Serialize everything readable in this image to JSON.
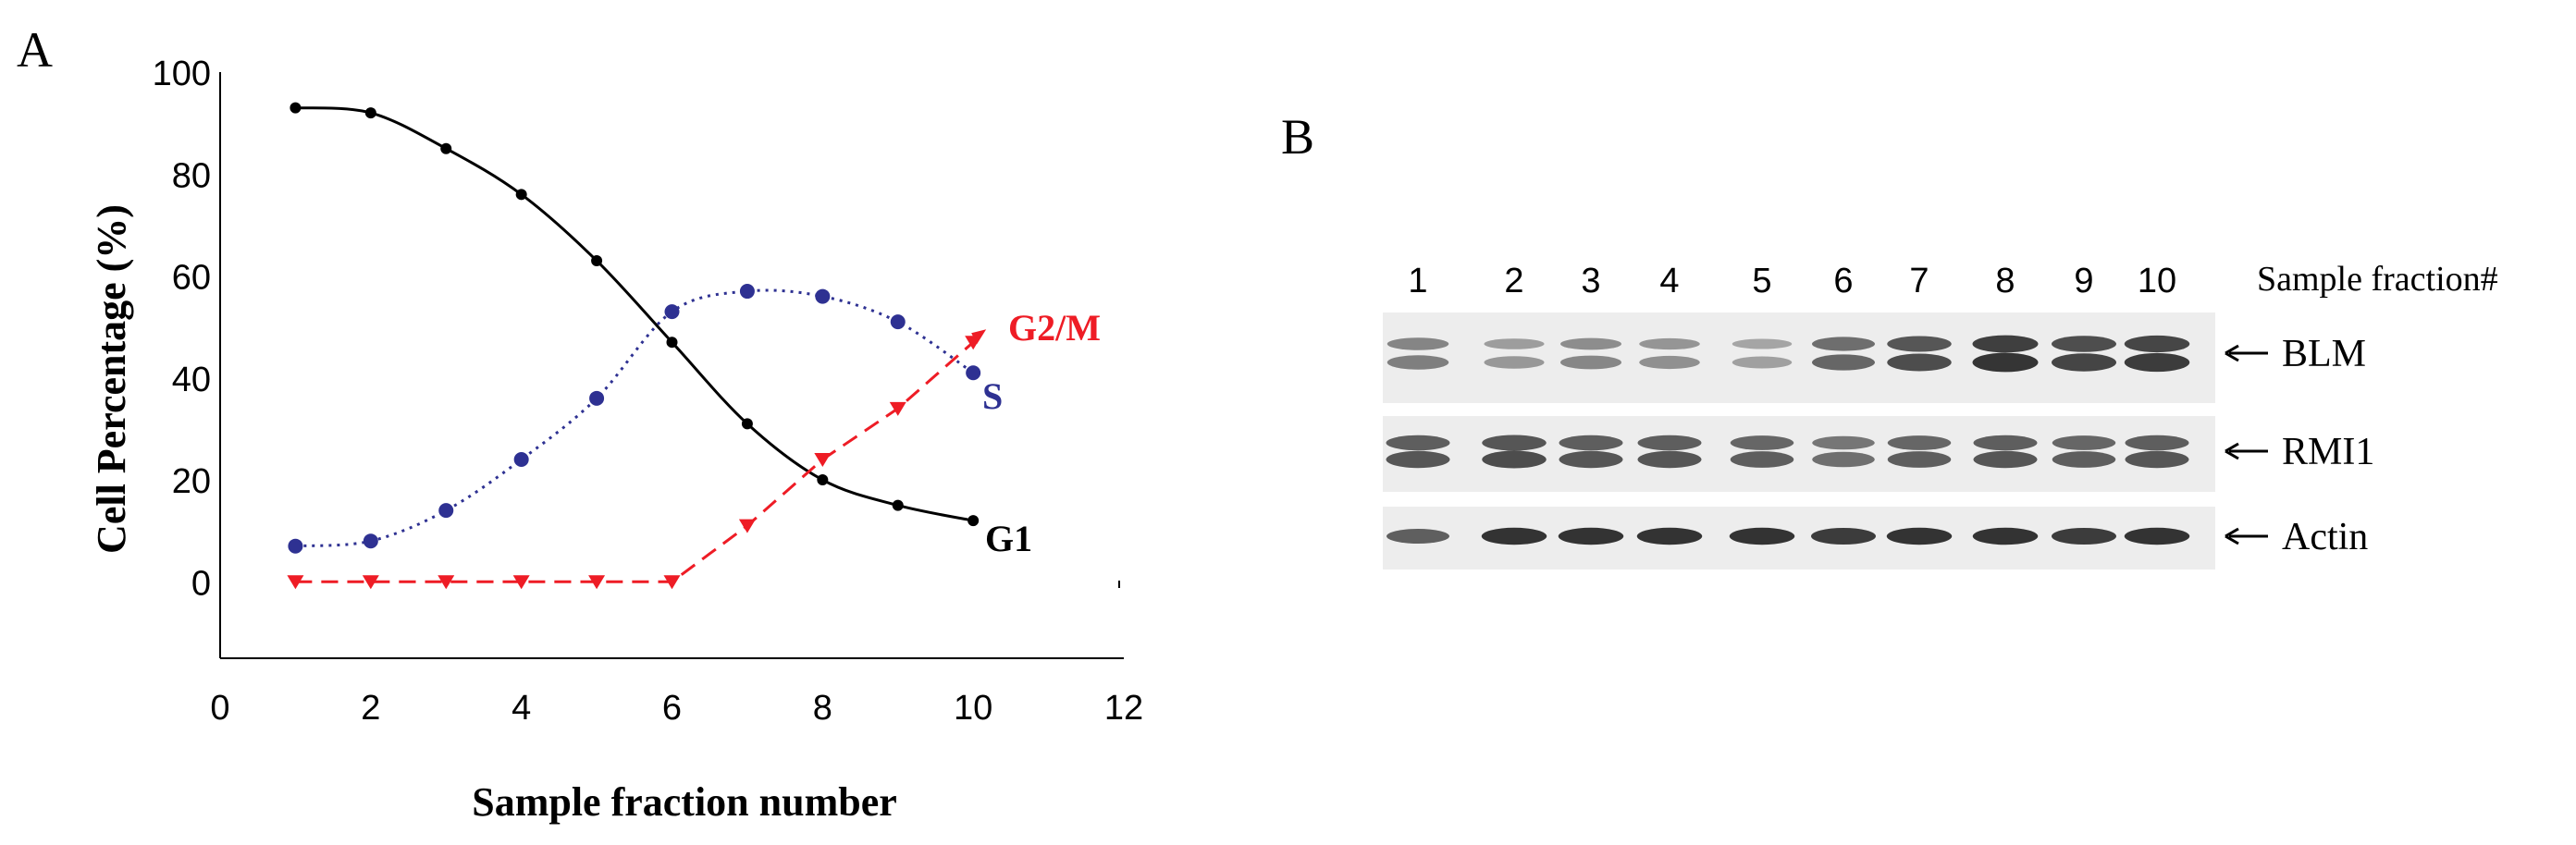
{
  "panel_a": {
    "label": "A",
    "chart_data": {
      "type": "line",
      "title": "",
      "xlabel": "Sample fraction number",
      "ylabel": "Cell Percentage (%)",
      "xlim": [
        0,
        12
      ],
      "ylim": [
        -15,
        100
      ],
      "x_ticks": [
        "0",
        "2",
        "4",
        "6",
        "8",
        "10",
        "12"
      ],
      "y_ticks": [
        "0",
        "20",
        "40",
        "60",
        "80",
        "100"
      ],
      "grid": false,
      "x": [
        1,
        2,
        3,
        4,
        5,
        6,
        7,
        8,
        9,
        10
      ],
      "series": [
        {
          "name": "G1",
          "color": "#000000",
          "marker": "circle",
          "line": "solid",
          "values": [
            93,
            92,
            85,
            76,
            63,
            47,
            31,
            20,
            15,
            12
          ]
        },
        {
          "name": "S",
          "color": "#2e3192",
          "marker": "circle",
          "line": "dotted",
          "values": [
            7,
            8,
            14,
            24,
            36,
            53,
            57,
            56,
            51,
            41
          ]
        },
        {
          "name": "G2/M",
          "color": "#ee1c25",
          "marker": "triangle-down",
          "line": "dashed",
          "values": [
            0,
            0,
            0,
            0,
            0,
            0,
            11,
            24,
            34,
            47
          ]
        }
      ]
    }
  },
  "panel_b": {
    "label": "B",
    "lane_header": "Sample fraction#",
    "lanes": [
      "1",
      "2",
      "3",
      "4",
      "5",
      "6",
      "7",
      "8",
      "9",
      "10"
    ],
    "bands": [
      {
        "name": "BLM",
        "intensity": [
          0.45,
          0.3,
          0.4,
          0.35,
          0.25,
          0.6,
          0.75,
          0.9,
          0.8,
          0.85
        ]
      },
      {
        "name": "RMI1",
        "intensity": [
          0.7,
          0.75,
          0.7,
          0.7,
          0.65,
          0.55,
          0.65,
          0.7,
          0.65,
          0.7
        ]
      },
      {
        "name": "Actin",
        "intensity": [
          0.6,
          0.85,
          0.85,
          0.85,
          0.85,
          0.8,
          0.85,
          0.85,
          0.8,
          0.85
        ]
      }
    ]
  }
}
